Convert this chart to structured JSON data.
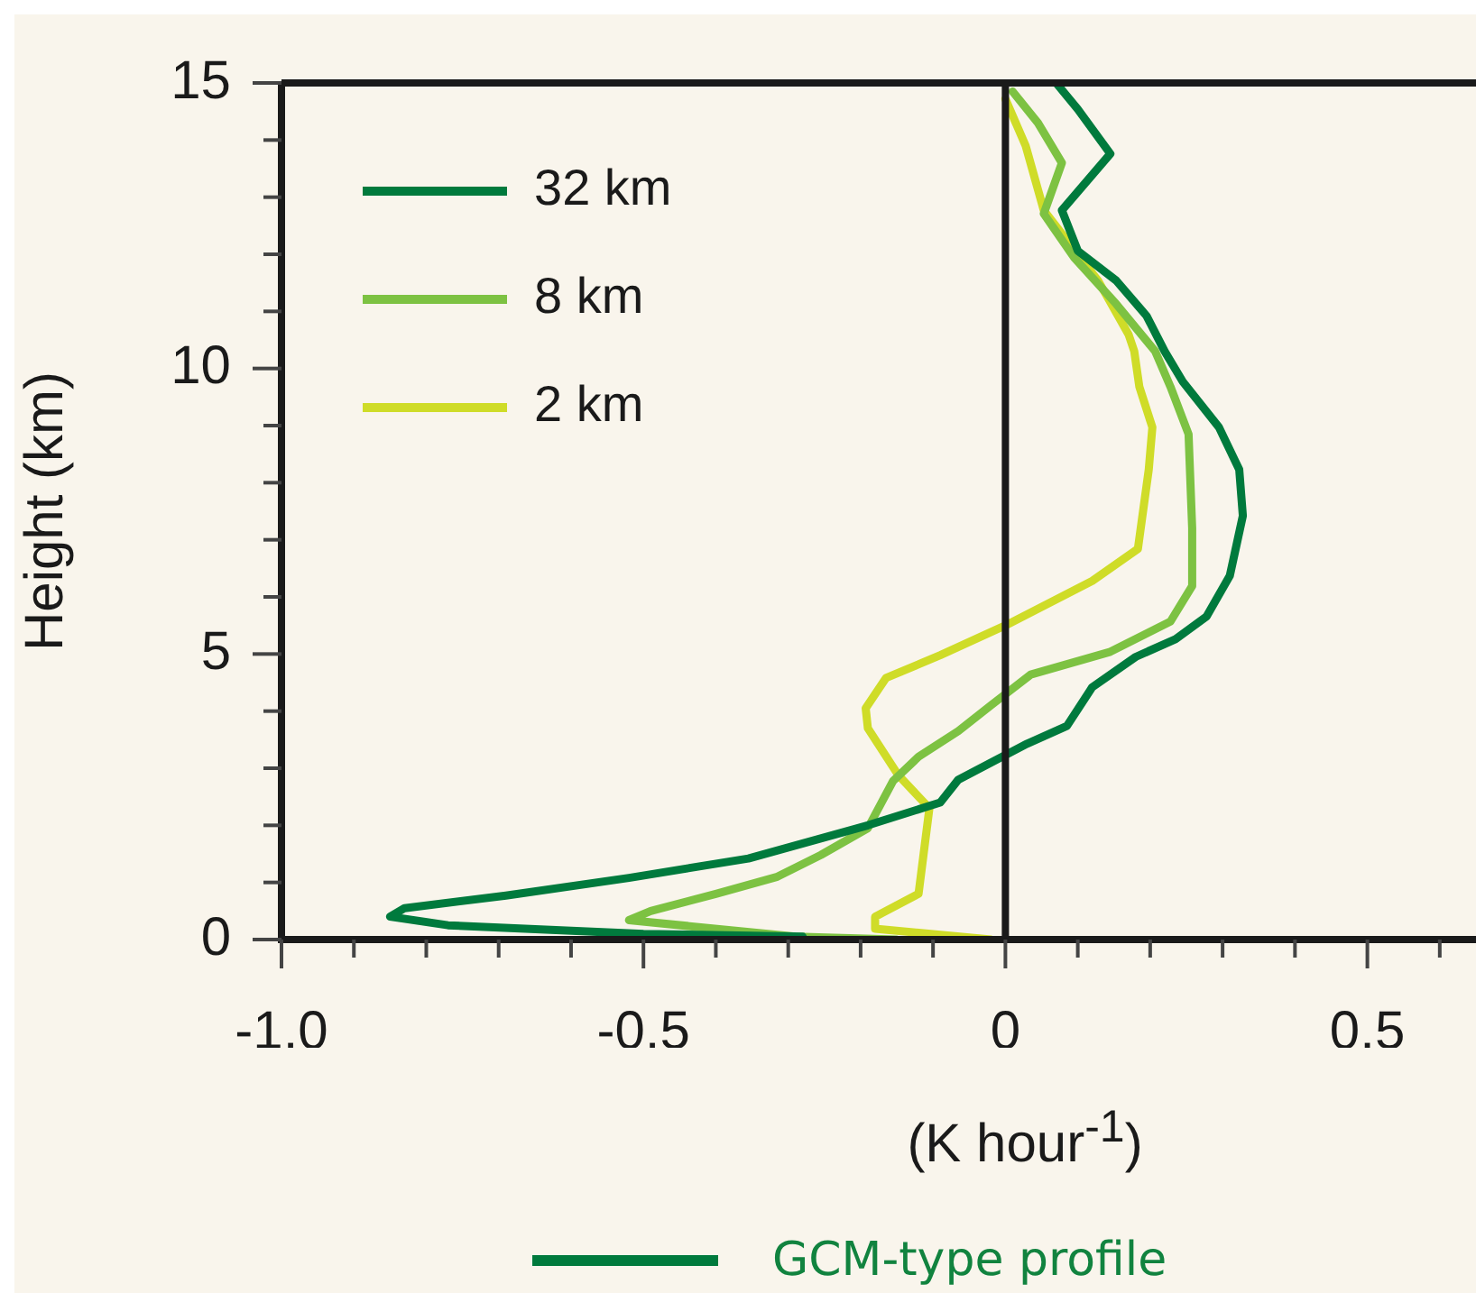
{
  "chart_data": {
    "type": "line",
    "xlabel": "(K hour$^{-1}$)",
    "ylabel": "Height (km)",
    "legend": "top left",
    "xlim": [
      -1.0,
      0.67
    ],
    "xticks": [
      {
        "value": -1.0,
        "label": "-1.0"
      },
      {
        "value": -0.9,
        "label": null
      },
      {
        "value": -0.8,
        "label": null
      },
      {
        "value": -0.7,
        "label": null
      },
      {
        "value": -0.6,
        "label": null
      },
      {
        "value": -0.5,
        "label": "-0.5"
      },
      {
        "value": -0.4,
        "label": null
      },
      {
        "value": -0.3,
        "label": null
      },
      {
        "value": -0.2,
        "label": null
      },
      {
        "value": -0.1,
        "label": null
      },
      0,
      {
        "value": 0.1,
        "label": null
      },
      {
        "value": 0.2,
        "label": null
      },
      {
        "value": 0.3,
        "label": null
      },
      {
        "value": 0.4,
        "label": null
      },
      {
        "value": 0.5,
        "label": "0.5"
      },
      {
        "value": 0.6,
        "label": null
      }
    ],
    "ylim": [
      0,
      15
    ],
    "yticks": [
      0,
      {
        "value": 1,
        "label": null
      },
      {
        "value": 2,
        "label": null
      },
      {
        "value": 3,
        "label": null
      },
      {
        "value": 4,
        "label": null
      },
      5,
      {
        "value": 6,
        "label": null
      },
      {
        "value": 7,
        "label": null
      },
      {
        "value": 8,
        "label": null
      },
      {
        "value": 9,
        "label": null
      },
      10,
      {
        "value": 11,
        "label": null
      },
      {
        "value": 12,
        "label": null
      },
      {
        "value": 13,
        "label": null
      },
      {
        "value": 14,
        "label": null
      },
      15
    ],
    "ref_lines": [
      {
        "axis": "x",
        "value": 0,
        "color": "#1a1a1a"
      }
    ],
    "annotations": [
      "GCM-type profile"
    ],
    "series": [
      {
        "name": "32 km",
        "color": "#007a3d",
        "x": [
          -0.28,
          -0.5,
          -0.77,
          -0.85,
          -0.83,
          -0.69,
          -0.52,
          -0.355,
          -0.19,
          -0.09,
          -0.065,
          0.03,
          0.085,
          0.12,
          0.18,
          0.235,
          0.278,
          0.31,
          0.328,
          0.323,
          0.295,
          0.245,
          0.22,
          0.195,
          0.153,
          0.1,
          0.078,
          0.145,
          0.1,
          0.07
        ],
        "values": [
          0.05,
          0.1,
          0.25,
          0.4,
          0.55,
          0.77,
          1.08,
          1.42,
          2.0,
          2.4,
          2.8,
          3.43,
          3.74,
          4.42,
          4.95,
          5.26,
          5.66,
          6.37,
          7.42,
          8.23,
          8.97,
          9.77,
          10.3,
          10.92,
          11.54,
          12.06,
          12.77,
          13.76,
          14.54,
          15
        ]
      },
      {
        "name": "8 km",
        "color": "#7dc242",
        "x": [
          -0.15,
          -0.29,
          -0.52,
          -0.49,
          -0.4,
          -0.315,
          -0.255,
          -0.19,
          -0.155,
          -0.12,
          -0.065,
          -0.02,
          0.035,
          0.145,
          0.228,
          0.258,
          0.258,
          0.253,
          0.228,
          0.207,
          0.153,
          0.095,
          0.053,
          0.078,
          0.045,
          0.01
        ],
        "values": [
          0,
          0.05,
          0.34,
          0.5,
          0.8,
          1.1,
          1.48,
          1.95,
          2.78,
          3.2,
          3.65,
          4.1,
          4.64,
          5.04,
          5.57,
          6.19,
          7.2,
          8.85,
          9.68,
          10.3,
          11.13,
          11.94,
          12.71,
          13.6,
          14.3,
          14.85
        ]
      },
      {
        "name": "2 km",
        "color": "#cfdc28",
        "x": [
          -0.02,
          -0.18,
          -0.18,
          -0.12,
          -0.105,
          -0.148,
          -0.19,
          -0.193,
          -0.165,
          -0.09,
          0,
          0.12,
          0.183,
          0.198,
          0.203,
          0.185,
          0.178,
          0.17,
          0.128,
          0.053,
          0.028,
          0
        ],
        "values": [
          0,
          0.19,
          0.4,
          0.8,
          2.3,
          2.88,
          3.7,
          4.05,
          4.58,
          4.98,
          5.5,
          6.28,
          6.84,
          8.23,
          8.97,
          9.68,
          10.3,
          10.6,
          11.54,
          12.77,
          13.9,
          14.72
        ]
      }
    ]
  }
}
